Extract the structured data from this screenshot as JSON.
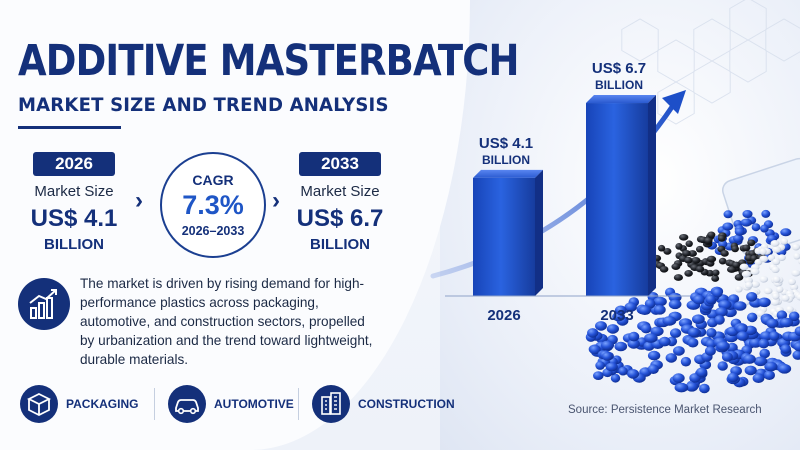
{
  "header": {
    "title": "ADDITIVE MASTERBATCH",
    "subtitle": "MARKET SIZE AND TREND ANALYSIS"
  },
  "stats": {
    "start": {
      "year": "2026",
      "label": "Market Size",
      "value": "US$ 4.1",
      "unit": "BILLION"
    },
    "end": {
      "year": "2033",
      "label": "Market Size",
      "value": "US$ 6.7",
      "unit": "BILLION"
    },
    "cagr": {
      "label": "CAGR",
      "value": "7.3%",
      "period": "2026–2033"
    }
  },
  "description": "The market is driven by rising demand for high-performance plastics across packaging, automotive, and construction sectors, propelled by urbanization and the trend toward lightweight, durable materials.",
  "sectors": [
    {
      "label": "PACKAGING",
      "icon": "box-icon"
    },
    {
      "label": "AUTOMOTIVE",
      "icon": "car-icon"
    },
    {
      "label": "CONSTRUCTION",
      "icon": "building-icon"
    }
  ],
  "source": "Source: Persistence Market Research",
  "colors": {
    "navy": "#14307a",
    "blue": "#1f56c6",
    "bar": "#1e4fc4"
  },
  "chart_data": {
    "type": "bar",
    "categories": [
      "2026",
      "2033"
    ],
    "values": [
      4.1,
      6.7
    ],
    "value_labels": [
      [
        "US$ 4.1",
        "BILLION"
      ],
      [
        "US$ 6.7",
        "BILLION"
      ]
    ],
    "unit": "US$ Billion",
    "ylim": [
      0,
      7.5
    ],
    "grid": false,
    "trend_arrow": true
  }
}
